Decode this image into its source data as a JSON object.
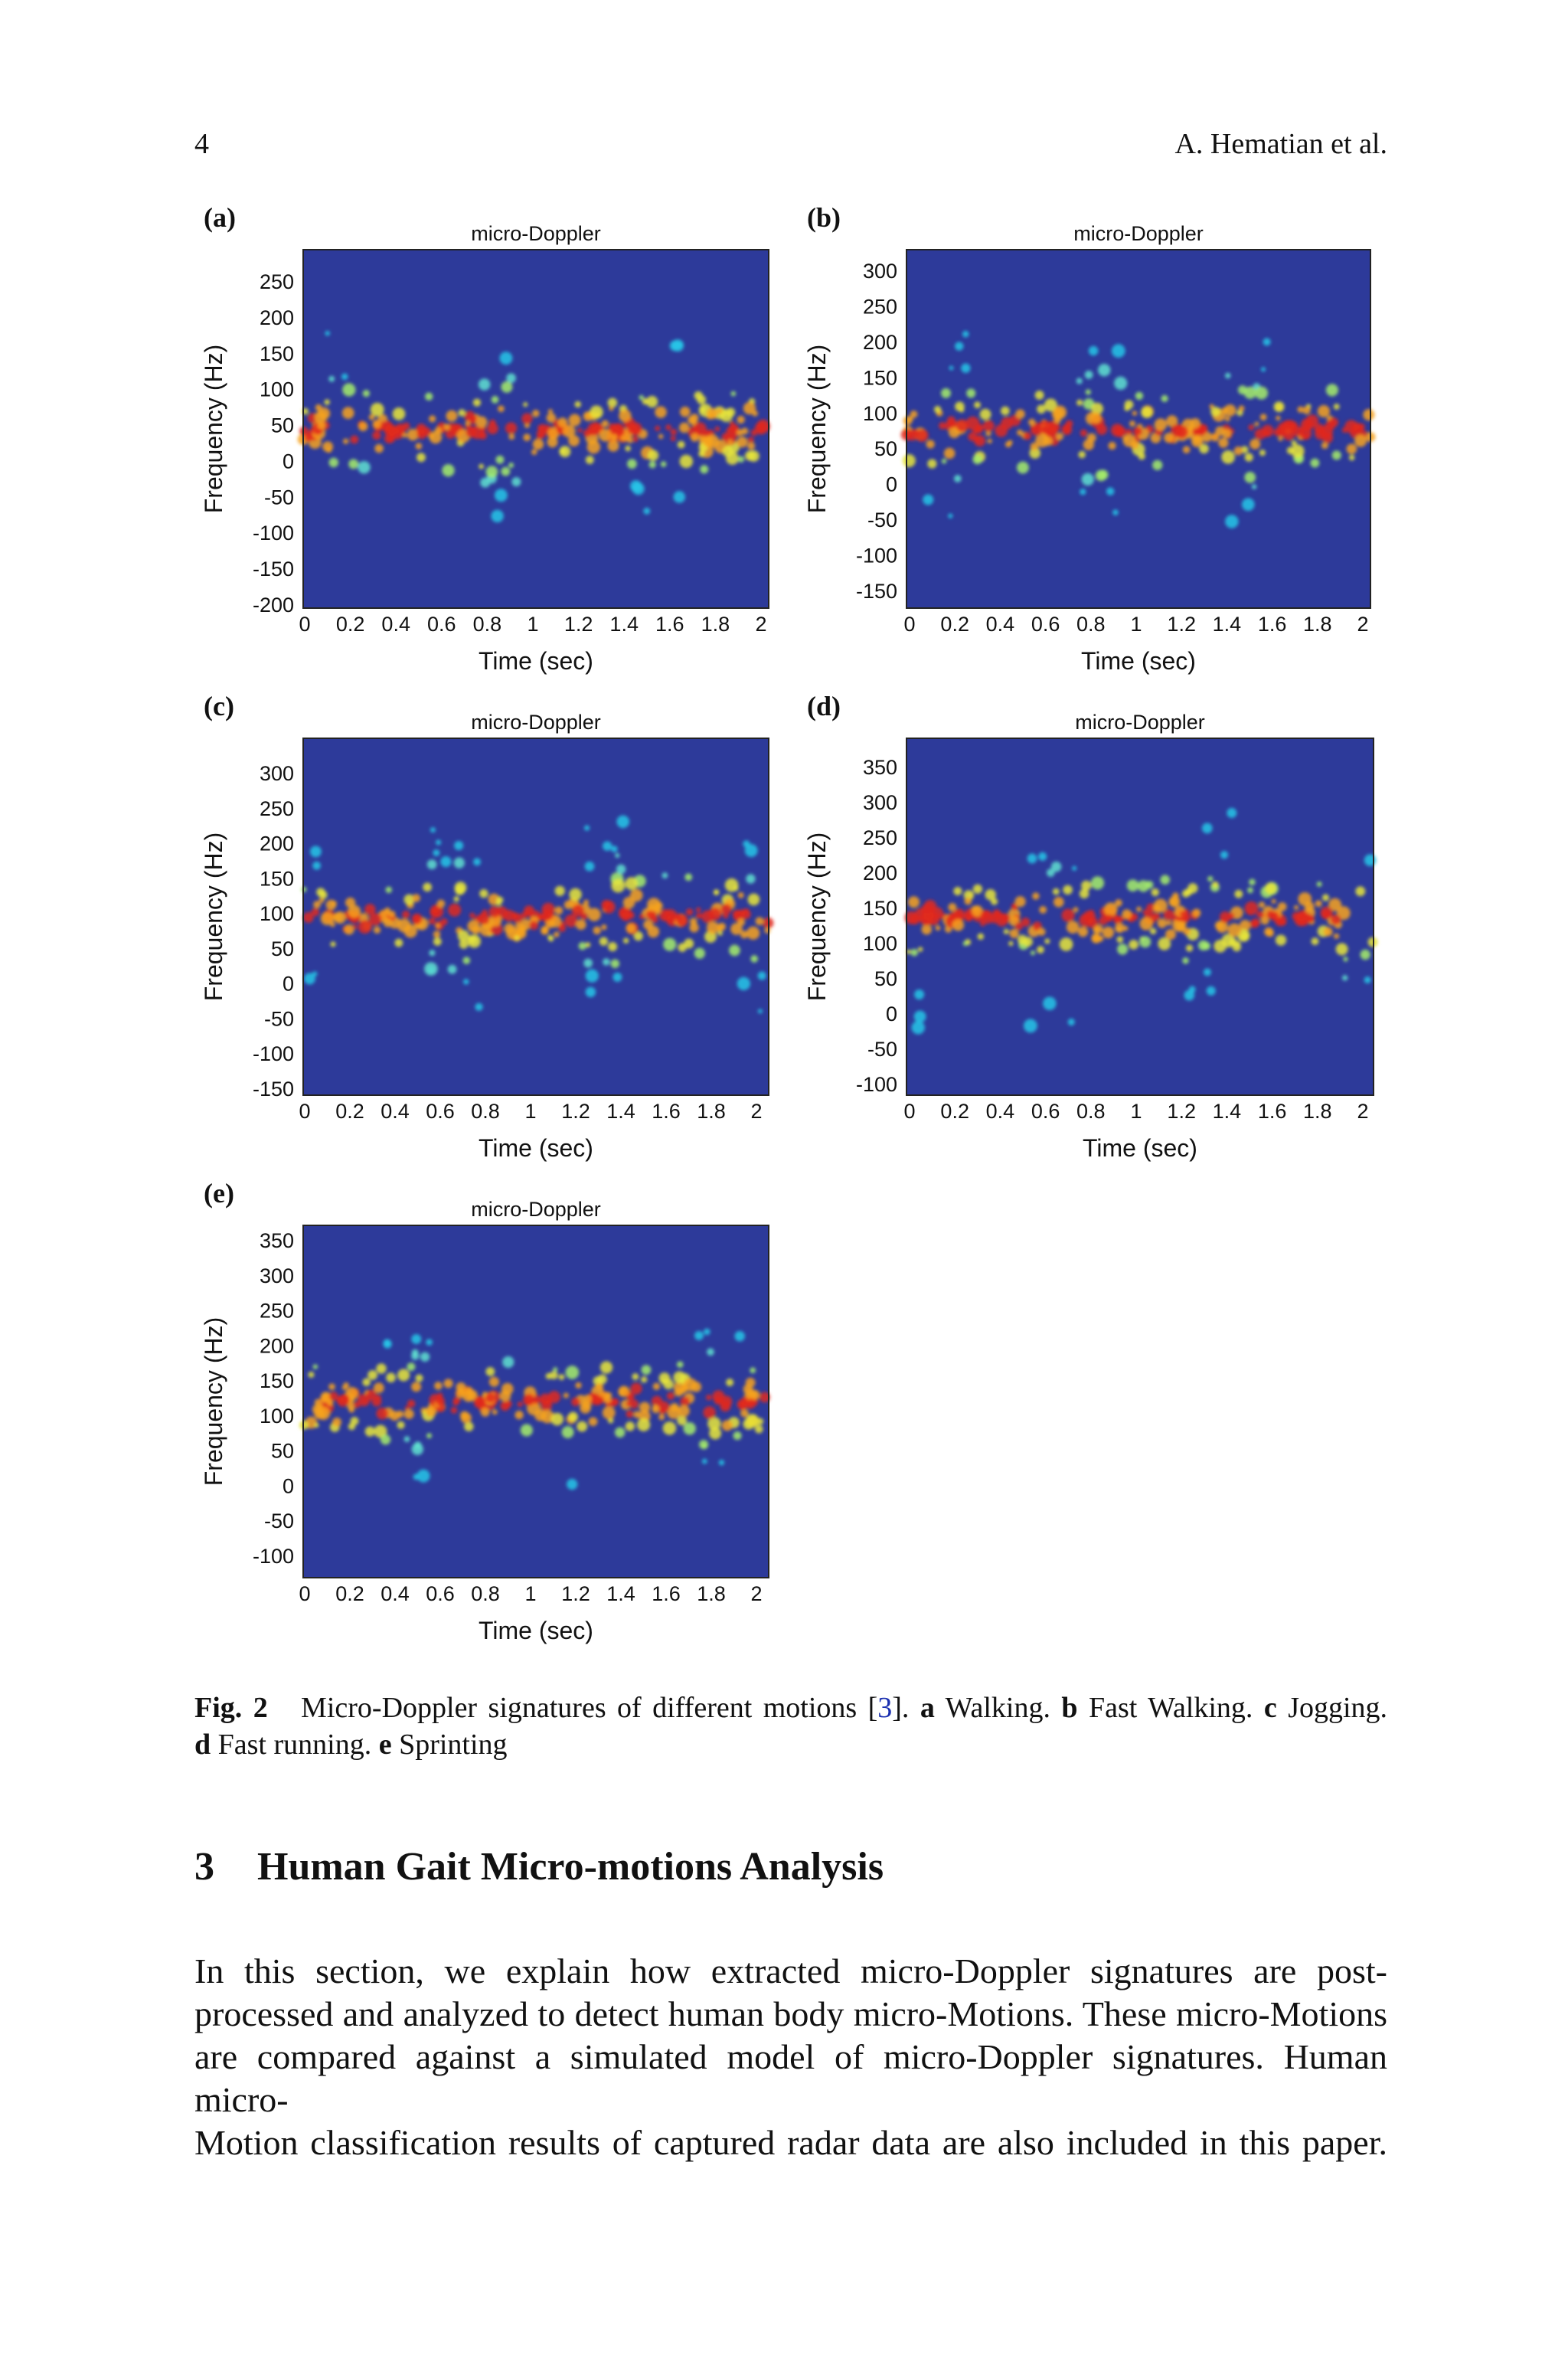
{
  "header": {
    "page_number": "4",
    "authors": "A. Hematian et al."
  },
  "figure": {
    "panels": [
      {
        "label": "(a)",
        "title": "micro-Doppler",
        "ylabel": "Frequency (Hz)",
        "xlabel": "Time (sec)",
        "yticks": [
          250,
          200,
          150,
          100,
          50,
          0,
          -50,
          -100,
          -150,
          -200
        ],
        "xticks": [
          0,
          0.2,
          0.4,
          0.6,
          0.8,
          1,
          1.2,
          1.4,
          1.6,
          1.8,
          2
        ]
      },
      {
        "label": "(b)",
        "title": "micro-Doppler",
        "ylabel": "Frequency (Hz)",
        "xlabel": "Time (sec)",
        "yticks": [
          300,
          250,
          200,
          150,
          100,
          50,
          0,
          -50,
          -100,
          -150
        ],
        "xticks": [
          0,
          0.2,
          0.4,
          0.6,
          0.8,
          1,
          1.2,
          1.4,
          1.6,
          1.8,
          2
        ]
      },
      {
        "label": "(c)",
        "title": "micro-Doppler",
        "ylabel": "Frequency (Hz)",
        "xlabel": "Time (sec)",
        "yticks": [
          300,
          250,
          200,
          150,
          100,
          50,
          0,
          -50,
          -100,
          -150
        ],
        "xticks": [
          0,
          0.2,
          0.4,
          0.6,
          0.8,
          1,
          1.2,
          1.4,
          1.6,
          1.8,
          2
        ]
      },
      {
        "label": "(d)",
        "title": "micro-Doppler",
        "ylabel": "Frequency (Hz)",
        "xlabel": "Time (sec)",
        "yticks": [
          350,
          300,
          250,
          200,
          150,
          100,
          50,
          0,
          -50,
          -100
        ],
        "xticks": [
          0,
          0.2,
          0.4,
          0.6,
          0.8,
          1,
          1.2,
          1.4,
          1.6,
          1.8,
          2
        ]
      },
      {
        "label": "(e)",
        "title": "micro-Doppler",
        "ylabel": "Frequency (Hz)",
        "xlabel": "Time (sec)",
        "yticks": [
          350,
          300,
          250,
          200,
          150,
          100,
          50,
          0,
          -50,
          -100
        ],
        "xticks": [
          0,
          0.2,
          0.4,
          0.6,
          0.8,
          1,
          1.2,
          1.4,
          1.6,
          1.8,
          2
        ]
      }
    ],
    "caption": {
      "label": "Fig. 2",
      "text": "Micro-Doppler signatures of different motions [",
      "ref": "3",
      "ref_close": "].",
      "items": [
        {
          "letter": "a",
          "text": "Walking."
        },
        {
          "letter": "b",
          "text": "Fast Walking."
        },
        {
          "letter": "c",
          "text": "Jogging."
        },
        {
          "letter": "d",
          "text": "Fast running."
        },
        {
          "letter": "e",
          "text": "Sprinting"
        }
      ]
    }
  },
  "section": {
    "number": "3",
    "title": "Human Gait Micro-motions Analysis",
    "paragraph_lines": [
      "In this section, we explain how extracted micro-Doppler signatures are post-",
      "processed and analyzed to detect human body micro-Motions. These micro-Motions",
      "are compared against a simulated model of micro-Doppler signatures. Human micro-",
      "Motion classification results of captured radar data are also included in this paper."
    ]
  }
}
